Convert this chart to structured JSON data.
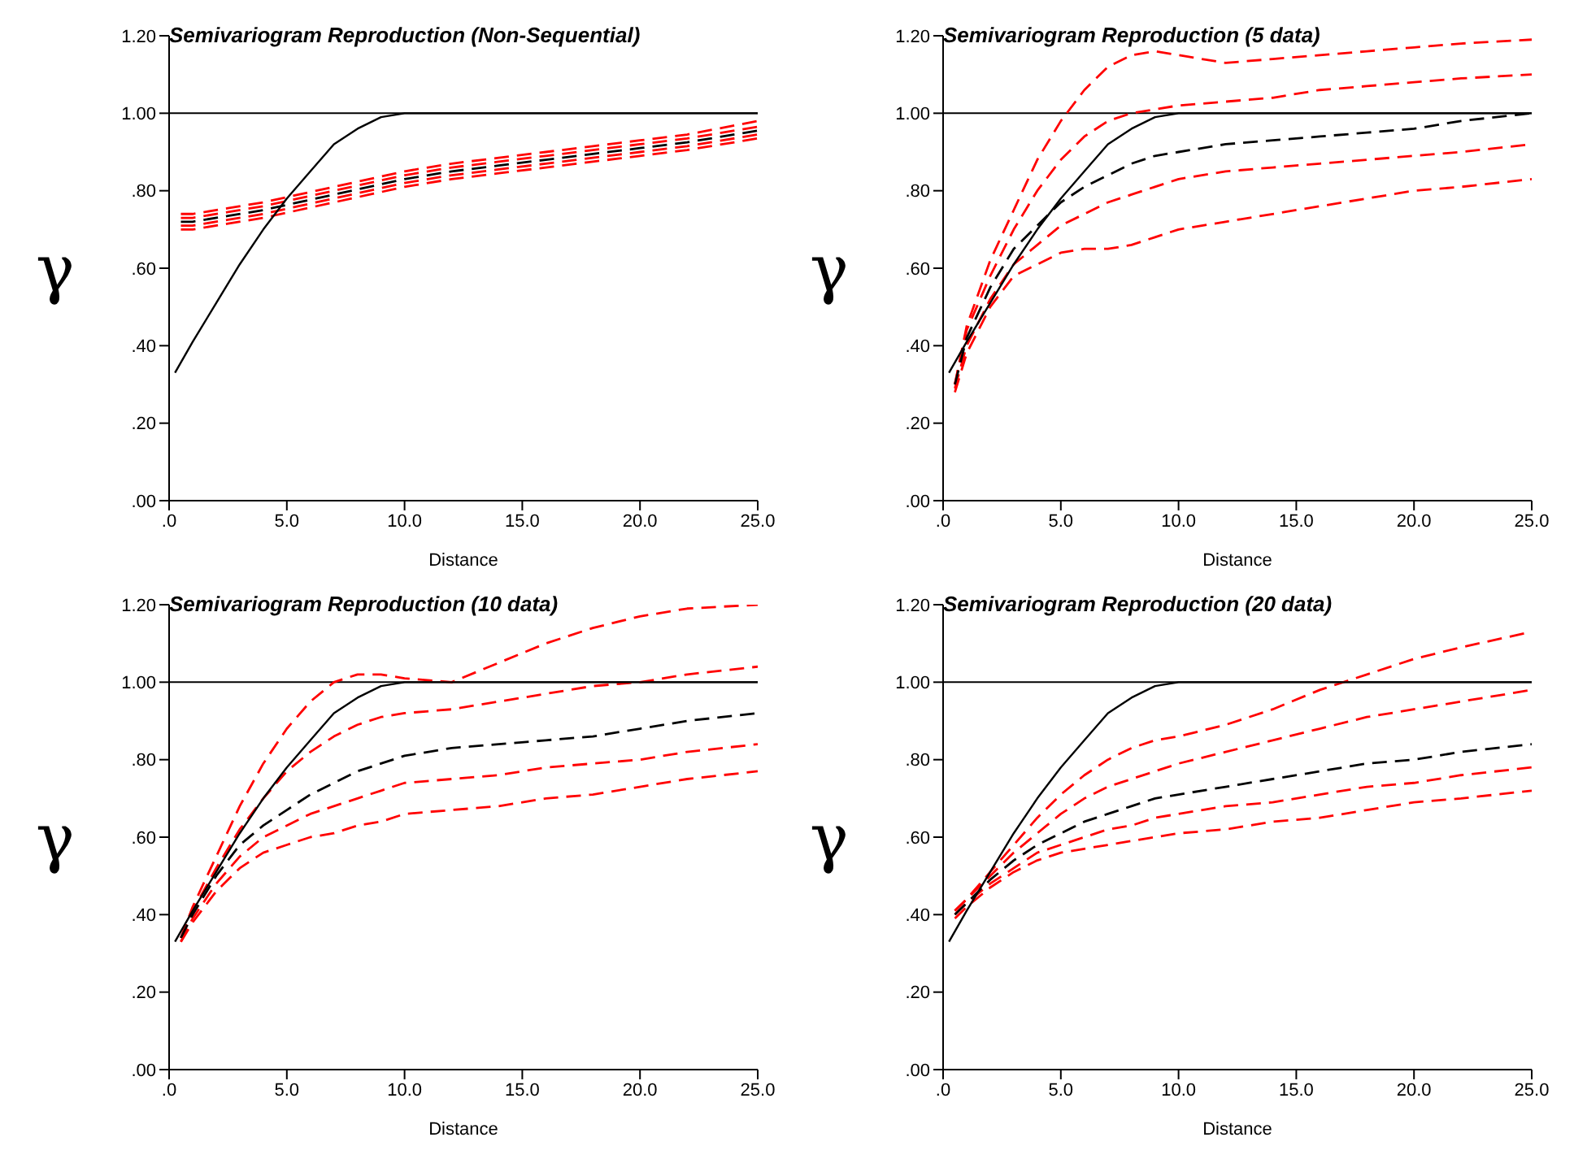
{
  "chart_data": [
    {
      "type": "line",
      "title": "Semivariogram Reproduction (Non-Sequential)",
      "xlabel": "Distance",
      "ylabel": "γ",
      "xlim": [
        0,
        25
      ],
      "ylim": [
        0,
        1.2
      ],
      "xticks": [
        {
          "value": 0,
          "label": ".0"
        },
        {
          "value": 5,
          "label": "5.0"
        },
        {
          "value": 10,
          "label": "10.0"
        },
        {
          "value": 15,
          "label": "15.0"
        },
        {
          "value": 20,
          "label": "20.0"
        },
        {
          "value": 25,
          "label": "25.0"
        }
      ],
      "yticks": [
        {
          "value": 0,
          "label": ".00"
        },
        {
          "value": 0.2,
          "label": ".20"
        },
        {
          "value": 0.4,
          "label": ".40"
        },
        {
          "value": 0.6,
          "label": ".60"
        },
        {
          "value": 0.8,
          "label": ".80"
        },
        {
          "value": 1,
          "label": "1.00"
        },
        {
          "value": 1.2,
          "label": "1.20"
        }
      ],
      "ref_lines": [
        {
          "axis": "y",
          "value": 1,
          "color": "#000000"
        }
      ],
      "grid": false,
      "legend": false,
      "series": [
        {
          "color": "#ff0000",
          "line_style": "dashed",
          "x": [
            0.5,
            1,
            2.5,
            4,
            5.5,
            7,
            8.5,
            10,
            12,
            14,
            16,
            18,
            20,
            22,
            25
          ],
          "values": [
            0.74,
            0.74,
            0.755,
            0.77,
            0.79,
            0.81,
            0.83,
            0.85,
            0.87,
            0.885,
            0.9,
            0.915,
            0.93,
            0.945,
            0.98
          ]
        },
        {
          "color": "#ff0000",
          "line_style": "dashed",
          "x": [
            0.5,
            1,
            2.5,
            4,
            5.5,
            7,
            8.5,
            10,
            12,
            14,
            16,
            18,
            20,
            22,
            25
          ],
          "values": [
            0.73,
            0.73,
            0.745,
            0.76,
            0.78,
            0.8,
            0.82,
            0.84,
            0.86,
            0.875,
            0.89,
            0.905,
            0.92,
            0.935,
            0.965
          ]
        },
        {
          "color": "#ff0000",
          "line_style": "dashed",
          "x": [
            0.5,
            1,
            2.5,
            4,
            5.5,
            7,
            8.5,
            10,
            12,
            14,
            16,
            18,
            20,
            22,
            25
          ],
          "values": [
            0.71,
            0.71,
            0.725,
            0.74,
            0.76,
            0.78,
            0.8,
            0.82,
            0.84,
            0.855,
            0.87,
            0.885,
            0.9,
            0.915,
            0.945
          ]
        },
        {
          "color": "#ff0000",
          "line_style": "dashed",
          "x": [
            0.5,
            1,
            2.5,
            4,
            5.5,
            7,
            8.5,
            10,
            12,
            14,
            16,
            18,
            20,
            22,
            25
          ],
          "values": [
            0.7,
            0.7,
            0.715,
            0.73,
            0.75,
            0.77,
            0.79,
            0.81,
            0.83,
            0.845,
            0.86,
            0.875,
            0.89,
            0.905,
            0.935
          ]
        },
        {
          "color": "#000000",
          "line_style": "dashed",
          "x": [
            0.5,
            1,
            2.5,
            4,
            5.5,
            7,
            8.5,
            10,
            12,
            14,
            16,
            18,
            20,
            22,
            25
          ],
          "values": [
            0.72,
            0.72,
            0.735,
            0.75,
            0.77,
            0.79,
            0.81,
            0.83,
            0.85,
            0.865,
            0.88,
            0.895,
            0.91,
            0.925,
            0.955
          ]
        },
        {
          "color": "#000000",
          "line_style": "solid",
          "x": [
            0.25,
            1,
            2,
            3,
            4,
            5,
            6,
            7,
            8,
            9,
            10,
            25
          ],
          "values": [
            0.33,
            0.41,
            0.51,
            0.61,
            0.7,
            0.78,
            0.85,
            0.92,
            0.96,
            0.99,
            1,
            1
          ]
        }
      ]
    },
    {
      "type": "line",
      "title": "Semivariogram Reproduction (5 data)",
      "xlabel": "Distance",
      "ylabel": "γ",
      "xlim": [
        0,
        25
      ],
      "ylim": [
        0,
        1.2
      ],
      "xticks": [
        {
          "value": 0,
          "label": ".0"
        },
        {
          "value": 5,
          "label": "5.0"
        },
        {
          "value": 10,
          "label": "10.0"
        },
        {
          "value": 15,
          "label": "15.0"
        },
        {
          "value": 20,
          "label": "20.0"
        },
        {
          "value": 25,
          "label": "25.0"
        }
      ],
      "yticks": [
        {
          "value": 0,
          "label": ".00"
        },
        {
          "value": 0.2,
          "label": ".20"
        },
        {
          "value": 0.4,
          "label": ".40"
        },
        {
          "value": 0.6,
          "label": ".60"
        },
        {
          "value": 0.8,
          "label": ".80"
        },
        {
          "value": 1,
          "label": "1.00"
        },
        {
          "value": 1.2,
          "label": "1.20"
        }
      ],
      "ref_lines": [
        {
          "axis": "y",
          "value": 1,
          "color": "#000000"
        }
      ],
      "grid": false,
      "legend": false,
      "series": [
        {
          "color": "#ff0000",
          "line_style": "dashed",
          "x": [
            0.5,
            1,
            2,
            3,
            4,
            5,
            6,
            7,
            8,
            9,
            10,
            12,
            14,
            16,
            18,
            20,
            22,
            25
          ],
          "values": [
            0.3,
            0.45,
            0.62,
            0.75,
            0.88,
            0.98,
            1.06,
            1.12,
            1.15,
            1.16,
            1.15,
            1.13,
            1.14,
            1.15,
            1.16,
            1.17,
            1.18,
            1.19
          ]
        },
        {
          "color": "#ff0000",
          "line_style": "dashed",
          "x": [
            0.5,
            1,
            2,
            3,
            4,
            5,
            6,
            7,
            8,
            9,
            10,
            12,
            14,
            16,
            18,
            20,
            22,
            25
          ],
          "values": [
            0.3,
            0.44,
            0.58,
            0.7,
            0.8,
            0.88,
            0.94,
            0.98,
            1.0,
            1.01,
            1.02,
            1.03,
            1.04,
            1.06,
            1.07,
            1.08,
            1.09,
            1.1
          ]
        },
        {
          "color": "#ff0000",
          "line_style": "dashed",
          "x": [
            0.5,
            1,
            2,
            3,
            4,
            5,
            6,
            7,
            8,
            9,
            10,
            12,
            14,
            16,
            18,
            20,
            22,
            25
          ],
          "values": [
            0.29,
            0.4,
            0.52,
            0.61,
            0.66,
            0.71,
            0.74,
            0.77,
            0.79,
            0.81,
            0.83,
            0.85,
            0.86,
            0.87,
            0.88,
            0.89,
            0.9,
            0.92
          ]
        },
        {
          "color": "#ff0000",
          "line_style": "dashed",
          "x": [
            0.5,
            1,
            2,
            3,
            4,
            5,
            6,
            7,
            8,
            9,
            10,
            12,
            14,
            16,
            18,
            20,
            22,
            25
          ],
          "values": [
            0.28,
            0.38,
            0.5,
            0.58,
            0.61,
            0.64,
            0.65,
            0.65,
            0.66,
            0.68,
            0.7,
            0.72,
            0.74,
            0.76,
            0.78,
            0.8,
            0.81,
            0.83
          ]
        },
        {
          "color": "#000000",
          "line_style": "dashed",
          "x": [
            0.5,
            1,
            2,
            3,
            4,
            5,
            6,
            7,
            8,
            9,
            10,
            12,
            14,
            16,
            18,
            20,
            22,
            25
          ],
          "values": [
            0.3,
            0.42,
            0.55,
            0.65,
            0.71,
            0.77,
            0.81,
            0.84,
            0.87,
            0.89,
            0.9,
            0.92,
            0.93,
            0.94,
            0.95,
            0.96,
            0.98,
            1.0
          ]
        },
        {
          "color": "#000000",
          "line_style": "solid",
          "x": [
            0.25,
            1,
            2,
            3,
            4,
            5,
            6,
            7,
            8,
            9,
            10,
            25
          ],
          "values": [
            0.33,
            0.41,
            0.51,
            0.61,
            0.7,
            0.78,
            0.85,
            0.92,
            0.96,
            0.99,
            1,
            1
          ]
        }
      ]
    },
    {
      "type": "line",
      "title": "Semivariogram Reproduction (10 data)",
      "xlabel": "Distance",
      "ylabel": "γ",
      "xlim": [
        0,
        25
      ],
      "ylim": [
        0,
        1.2
      ],
      "xticks": [
        {
          "value": 0,
          "label": ".0"
        },
        {
          "value": 5,
          "label": "5.0"
        },
        {
          "value": 10,
          "label": "10.0"
        },
        {
          "value": 15,
          "label": "15.0"
        },
        {
          "value": 20,
          "label": "20.0"
        },
        {
          "value": 25,
          "label": "25.0"
        }
      ],
      "yticks": [
        {
          "value": 0,
          "label": ".00"
        },
        {
          "value": 0.2,
          "label": ".20"
        },
        {
          "value": 0.4,
          "label": ".40"
        },
        {
          "value": 0.6,
          "label": ".60"
        },
        {
          "value": 0.8,
          "label": ".80"
        },
        {
          "value": 1,
          "label": "1.00"
        },
        {
          "value": 1.2,
          "label": "1.20"
        }
      ],
      "ref_lines": [
        {
          "axis": "y",
          "value": 1,
          "color": "#000000"
        }
      ],
      "grid": false,
      "legend": false,
      "series": [
        {
          "color": "#ff0000",
          "line_style": "dashed",
          "x": [
            0.5,
            1,
            2,
            3,
            4,
            5,
            6,
            7,
            8,
            9,
            10,
            12,
            14,
            16,
            18,
            20,
            22,
            25
          ],
          "values": [
            0.34,
            0.42,
            0.55,
            0.68,
            0.79,
            0.88,
            0.95,
            1.0,
            1.02,
            1.02,
            1.01,
            1.0,
            1.05,
            1.1,
            1.14,
            1.17,
            1.19,
            1.2
          ]
        },
        {
          "color": "#ff0000",
          "line_style": "dashed",
          "x": [
            0.5,
            1,
            2,
            3,
            4,
            5,
            6,
            7,
            8,
            9,
            10,
            12,
            14,
            16,
            18,
            20,
            22,
            25
          ],
          "values": [
            0.34,
            0.41,
            0.52,
            0.62,
            0.7,
            0.77,
            0.82,
            0.86,
            0.89,
            0.91,
            0.92,
            0.93,
            0.95,
            0.97,
            0.99,
            1.0,
            1.02,
            1.04
          ]
        },
        {
          "color": "#ff0000",
          "line_style": "dashed",
          "x": [
            0.5,
            1,
            2,
            3,
            4,
            5,
            6,
            7,
            8,
            9,
            10,
            12,
            14,
            16,
            18,
            20,
            22,
            25
          ],
          "values": [
            0.33,
            0.39,
            0.48,
            0.55,
            0.6,
            0.63,
            0.66,
            0.68,
            0.7,
            0.72,
            0.74,
            0.75,
            0.76,
            0.78,
            0.79,
            0.8,
            0.82,
            0.84
          ]
        },
        {
          "color": "#ff0000",
          "line_style": "dashed",
          "x": [
            0.5,
            1,
            2,
            3,
            4,
            5,
            6,
            7,
            8,
            9,
            10,
            12,
            14,
            16,
            18,
            20,
            22,
            25
          ],
          "values": [
            0.33,
            0.38,
            0.46,
            0.52,
            0.56,
            0.58,
            0.6,
            0.61,
            0.63,
            0.64,
            0.66,
            0.67,
            0.68,
            0.7,
            0.71,
            0.73,
            0.75,
            0.77
          ]
        },
        {
          "color": "#000000",
          "line_style": "dashed",
          "x": [
            0.5,
            1,
            2,
            3,
            4,
            5,
            6,
            7,
            8,
            9,
            10,
            12,
            14,
            16,
            18,
            20,
            22,
            25
          ],
          "values": [
            0.34,
            0.4,
            0.5,
            0.58,
            0.63,
            0.67,
            0.71,
            0.74,
            0.77,
            0.79,
            0.81,
            0.83,
            0.84,
            0.85,
            0.86,
            0.88,
            0.9,
            0.92
          ]
        },
        {
          "color": "#000000",
          "line_style": "solid",
          "x": [
            0.25,
            1,
            2,
            3,
            4,
            5,
            6,
            7,
            8,
            9,
            10,
            25
          ],
          "values": [
            0.33,
            0.41,
            0.51,
            0.61,
            0.7,
            0.78,
            0.85,
            0.92,
            0.96,
            0.99,
            1,
            1
          ]
        }
      ]
    },
    {
      "type": "line",
      "title": "Semivariogram Reproduction (20 data)",
      "xlabel": "Distance",
      "ylabel": "γ",
      "xlim": [
        0,
        25
      ],
      "ylim": [
        0,
        1.2
      ],
      "xticks": [
        {
          "value": 0,
          "label": ".0"
        },
        {
          "value": 5,
          "label": "5.0"
        },
        {
          "value": 10,
          "label": "10.0"
        },
        {
          "value": 15,
          "label": "15.0"
        },
        {
          "value": 20,
          "label": "20.0"
        },
        {
          "value": 25,
          "label": "25.0"
        }
      ],
      "yticks": [
        {
          "value": 0,
          "label": ".00"
        },
        {
          "value": 0.2,
          "label": ".20"
        },
        {
          "value": 0.4,
          "label": ".40"
        },
        {
          "value": 0.6,
          "label": ".60"
        },
        {
          "value": 0.8,
          "label": ".80"
        },
        {
          "value": 1,
          "label": "1.00"
        },
        {
          "value": 1.2,
          "label": "1.20"
        }
      ],
      "ref_lines": [
        {
          "axis": "y",
          "value": 1,
          "color": "#000000"
        }
      ],
      "grid": false,
      "legend": false,
      "series": [
        {
          "color": "#ff0000",
          "line_style": "dashed",
          "x": [
            0.5,
            1,
            2,
            3,
            4,
            5,
            6,
            7,
            8,
            9,
            10,
            12,
            14,
            16,
            18,
            20,
            22,
            25
          ],
          "values": [
            0.41,
            0.44,
            0.51,
            0.58,
            0.65,
            0.71,
            0.76,
            0.8,
            0.83,
            0.85,
            0.86,
            0.89,
            0.93,
            0.98,
            1.02,
            1.06,
            1.09,
            1.13
          ]
        },
        {
          "color": "#ff0000",
          "line_style": "dashed",
          "x": [
            0.5,
            1,
            2,
            3,
            4,
            5,
            6,
            7,
            8,
            9,
            10,
            12,
            14,
            16,
            18,
            20,
            22,
            25
          ],
          "values": [
            0.41,
            0.44,
            0.5,
            0.56,
            0.61,
            0.66,
            0.7,
            0.73,
            0.75,
            0.77,
            0.79,
            0.82,
            0.85,
            0.88,
            0.91,
            0.93,
            0.95,
            0.98
          ]
        },
        {
          "color": "#ff0000",
          "line_style": "dashed",
          "x": [
            0.5,
            1,
            2,
            3,
            4,
            5,
            6,
            7,
            8,
            9,
            10,
            12,
            14,
            16,
            18,
            20,
            22,
            25
          ],
          "values": [
            0.4,
            0.43,
            0.48,
            0.52,
            0.56,
            0.58,
            0.6,
            0.62,
            0.63,
            0.65,
            0.66,
            0.68,
            0.69,
            0.71,
            0.73,
            0.74,
            0.76,
            0.78
          ]
        },
        {
          "color": "#ff0000",
          "line_style": "dashed",
          "x": [
            0.5,
            1,
            2,
            3,
            4,
            5,
            6,
            7,
            8,
            9,
            10,
            12,
            14,
            16,
            18,
            20,
            22,
            25
          ],
          "values": [
            0.39,
            0.42,
            0.47,
            0.51,
            0.54,
            0.56,
            0.57,
            0.58,
            0.59,
            0.6,
            0.61,
            0.62,
            0.64,
            0.65,
            0.67,
            0.69,
            0.7,
            0.72
          ]
        },
        {
          "color": "#000000",
          "line_style": "dashed",
          "x": [
            0.5,
            1,
            2,
            3,
            4,
            5,
            6,
            7,
            8,
            9,
            10,
            12,
            14,
            16,
            18,
            20,
            22,
            25
          ],
          "values": [
            0.4,
            0.43,
            0.49,
            0.54,
            0.58,
            0.61,
            0.64,
            0.66,
            0.68,
            0.7,
            0.71,
            0.73,
            0.75,
            0.77,
            0.79,
            0.8,
            0.82,
            0.84
          ]
        },
        {
          "color": "#000000",
          "line_style": "solid",
          "x": [
            0.25,
            1,
            2,
            3,
            4,
            5,
            6,
            7,
            8,
            9,
            10,
            25
          ],
          "values": [
            0.33,
            0.41,
            0.51,
            0.61,
            0.7,
            0.78,
            0.85,
            0.92,
            0.96,
            0.99,
            1,
            1
          ]
        }
      ]
    }
  ]
}
